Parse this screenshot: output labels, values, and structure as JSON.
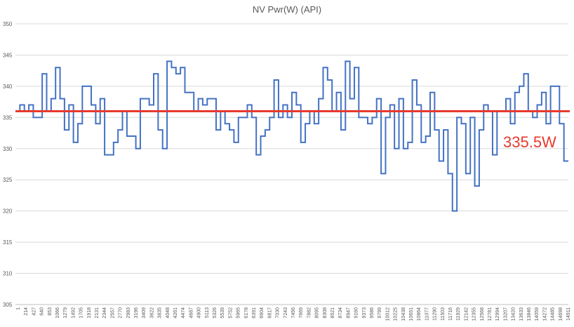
{
  "chart_data": {
    "type": "line",
    "title": "NV Pwr(W) (API)",
    "xlabel": "",
    "ylabel": "",
    "ylim": [
      305,
      350
    ],
    "yticks": [
      305,
      310,
      315,
      320,
      325,
      330,
      335,
      340,
      345,
      350
    ],
    "grid": "horizontal",
    "legend": "none",
    "step": true,
    "x_tick_labels": [
      "1",
      "214",
      "427",
      "640",
      "853",
      "1066",
      "1279",
      "1492",
      "1705",
      "1918",
      "2131",
      "2344",
      "2557",
      "2770",
      "2983",
      "3196",
      "3409",
      "3622",
      "3835",
      "4048",
      "4261",
      "4474",
      "4687",
      "4900",
      "5113",
      "5326",
      "5539",
      "5752",
      "5965",
      "6178",
      "6391",
      "6604",
      "6817",
      "7030",
      "7243",
      "7456",
      "7669",
      "7882",
      "8095",
      "8308",
      "8521",
      "8734",
      "8947",
      "9160",
      "9373",
      "9586",
      "9799",
      "10012",
      "10225",
      "10438",
      "10651",
      "10864",
      "11077",
      "11290",
      "11503",
      "11716",
      "11929",
      "12142",
      "12355",
      "12568",
      "12781",
      "12994",
      "13207",
      "13420",
      "13633",
      "13846",
      "14059",
      "14272",
      "14485",
      "14698",
      "14911"
    ],
    "series": [
      {
        "color": "#4472c4",
        "values": [
          336,
          337,
          336,
          337,
          335,
          335,
          342,
          336,
          338,
          343,
          338,
          333,
          337,
          331,
          334,
          340,
          340,
          337,
          334,
          338,
          329,
          329,
          331,
          333,
          336,
          332,
          332,
          330,
          338,
          338,
          337,
          342,
          333,
          330,
          344,
          343,
          342,
          343,
          339,
          339,
          336,
          338,
          337,
          338,
          338,
          333,
          336,
          334,
          333,
          331,
          335,
          335,
          337,
          335,
          329,
          332,
          333,
          335,
          341,
          335,
          337,
          335,
          339,
          337,
          331,
          334,
          336,
          334,
          338,
          343,
          341,
          336,
          339,
          333,
          344,
          338,
          343,
          335,
          335,
          334,
          335,
          338,
          326,
          335,
          337,
          330,
          338,
          330,
          331,
          341,
          337,
          331,
          332,
          339,
          333,
          328,
          333,
          326,
          320,
          335,
          334,
          326,
          335,
          324,
          333,
          337,
          336,
          329,
          336,
          336,
          338,
          334,
          339,
          340,
          342,
          336,
          335,
          337,
          339,
          334,
          340,
          340,
          334,
          328
        ]
      }
    ],
    "reference_line": {
      "value": 336,
      "color": "#e63a2e",
      "label": "335.5W"
    }
  }
}
